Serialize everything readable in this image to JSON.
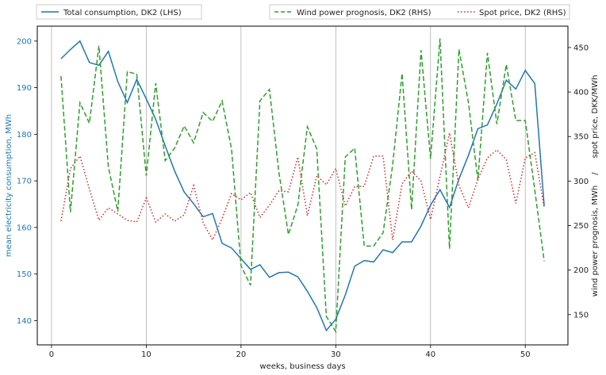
{
  "chart_data": {
    "type": "line",
    "xlabel": "weeks, business days",
    "ylabel_left": "mean electricity consumption, MWh",
    "ylabel_right_parts": [
      "wind power prognosis, MWh",
      "/",
      "spot price, DKK/MWh"
    ],
    "xlim": [
      -1.5,
      54.5
    ],
    "ylim_left": [
      134.8,
      203.2
    ],
    "ylim_right": [
      116,
      474
    ],
    "x_ticks": [
      0,
      10,
      20,
      30,
      40,
      50
    ],
    "y_left_ticks": [
      140,
      150,
      160,
      170,
      180,
      190,
      200
    ],
    "y_right_ticks": [
      150,
      200,
      250,
      300,
      350,
      400,
      450
    ],
    "grid": "vertical lines at x ticks",
    "legend_left_position": "top-left outside plot",
    "legend_right_position": "top-right outside plot",
    "x": [
      1,
      2,
      3,
      4,
      5,
      6,
      7,
      8,
      9,
      10,
      11,
      12,
      13,
      14,
      15,
      16,
      17,
      18,
      19,
      20,
      21,
      22,
      23,
      24,
      25,
      26,
      27,
      28,
      29,
      30,
      31,
      32,
      33,
      34,
      35,
      36,
      37,
      38,
      39,
      40,
      41,
      42,
      43,
      44,
      45,
      46,
      47,
      48,
      49,
      50,
      51,
      52
    ],
    "series": [
      {
        "name": "Total consumption, DK2 (LHS)",
        "axis": "left",
        "style": "solid",
        "color": "#1f77b4",
        "values": [
          196.2,
          198.2,
          200.0,
          195.4,
          194.8,
          197.8,
          191.3,
          186.8,
          191.8,
          187.6,
          183.2,
          177.5,
          172.1,
          167.6,
          165.1,
          162.3,
          163.0,
          156.6,
          155.6,
          153.3,
          151.0,
          152.0,
          149.3,
          150.3,
          150.4,
          149.4,
          146.3,
          142.8,
          137.9,
          140.3,
          145.5,
          151.7,
          152.9,
          152.6,
          155.2,
          154.6,
          156.9,
          156.9,
          160.3,
          164.8,
          168.1,
          164.3,
          170.4,
          175.5,
          181.2,
          182.0,
          186.5,
          191.6,
          189.7,
          193.7,
          190.9,
          164.6
        ]
      },
      {
        "name": "Wind power prognosis, DK2 (RHS)",
        "axis": "right",
        "style": "dashed",
        "color": "#2ca02c",
        "values": [
          418,
          265,
          388,
          365,
          452,
          316,
          266,
          423,
          420,
          306,
          410,
          323,
          337,
          362,
          343,
          377,
          367,
          390,
          336,
          205,
          183,
          390,
          403,
          310,
          240,
          273,
          361,
          336,
          148,
          131,
          327,
          337,
          227,
          227,
          242,
          318,
          421,
          268,
          447,
          325,
          460,
          224,
          448,
          388,
          301,
          444,
          364,
          431,
          368,
          368,
          290,
          210
        ]
      },
      {
        "name": "Spot price, DK2 (RHS)",
        "axis": "right",
        "style": "dotted",
        "color": "#d62728",
        "values": [
          255,
          314,
          328,
          291,
          256,
          270,
          263,
          256,
          254,
          281,
          254,
          263,
          255,
          262,
          295,
          253,
          234,
          258,
          286,
          279,
          287,
          259,
          273,
          289,
          288,
          327,
          261,
          306,
          296,
          314,
          272,
          294,
          294,
          328,
          328,
          234,
          297,
          311,
          300,
          257,
          305,
          354,
          295,
          270,
          302,
          326,
          335,
          324,
          275,
          326,
          332,
          270
        ]
      }
    ]
  }
}
